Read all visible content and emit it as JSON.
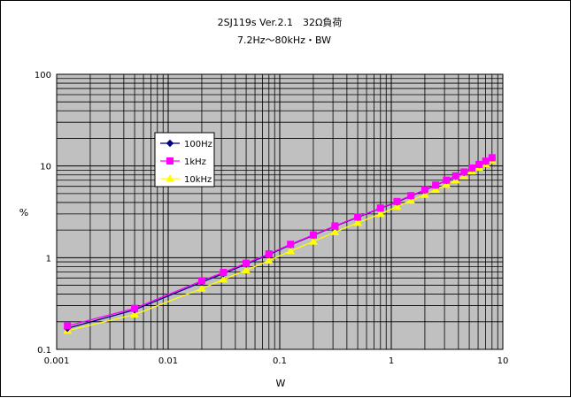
{
  "chart_data": {
    "type": "line",
    "title": "2SJ119s Ver.2.1　32Ω負荷",
    "subtitle": "7.2Hz〜80kHz・BW",
    "xlabel": "W",
    "ylabel": "%",
    "x_scale": "log",
    "y_scale": "log",
    "xlim": [
      0.001,
      10
    ],
    "ylim": [
      0.1,
      100
    ],
    "x_ticks": [
      "0.001",
      "0.01",
      "0.1",
      "1",
      "10"
    ],
    "y_ticks": [
      "0.1",
      "1",
      "10",
      "100"
    ],
    "grid": true,
    "legend_position": "upper-left",
    "series": [
      {
        "name": "100Hz",
        "color": "#000080",
        "marker": "diamond",
        "x": [
          0.00125,
          0.005,
          0.02,
          0.03125,
          0.05,
          0.08,
          0.125,
          0.2,
          0.3125,
          0.5,
          0.8,
          1.125,
          1.5,
          2.0,
          2.5,
          3.125,
          3.78,
          4.5,
          5.28,
          6.125,
          7.03,
          8.0
        ],
        "y": [
          0.17,
          0.27,
          0.54,
          0.67,
          0.85,
          1.08,
          1.38,
          1.75,
          2.2,
          2.75,
          3.45,
          4.05,
          4.7,
          5.45,
          6.15,
          6.95,
          7.7,
          8.5,
          9.4,
          10.3,
          11.2,
          12.2
        ]
      },
      {
        "name": "1kHz",
        "color": "#FF00FF",
        "marker": "square",
        "x": [
          0.00125,
          0.005,
          0.02,
          0.03125,
          0.05,
          0.08,
          0.125,
          0.2,
          0.3125,
          0.5,
          0.8,
          1.125,
          1.5,
          2.0,
          2.5,
          3.125,
          3.78,
          4.5,
          5.28,
          6.125,
          7.03,
          8.0
        ],
        "y": [
          0.18,
          0.28,
          0.56,
          0.69,
          0.87,
          1.1,
          1.4,
          1.77,
          2.22,
          2.78,
          3.48,
          4.1,
          4.75,
          5.5,
          6.2,
          7.0,
          7.8,
          8.6,
          9.5,
          10.4,
          11.3,
          12.3
        ]
      },
      {
        "name": "10kHz",
        "color": "#FFFF00",
        "marker": "triangle",
        "x": [
          0.00125,
          0.005,
          0.02,
          0.03125,
          0.05,
          0.08,
          0.125,
          0.2,
          0.3125,
          0.5,
          0.8,
          1.125,
          1.5,
          2.0,
          2.5,
          3.125,
          3.78,
          4.5,
          5.28,
          6.125,
          7.03,
          8.0
        ],
        "y": [
          0.16,
          0.24,
          0.46,
          0.58,
          0.73,
          0.93,
          1.18,
          1.5,
          1.9,
          2.4,
          3.0,
          3.6,
          4.2,
          4.85,
          5.5,
          6.25,
          7.0,
          7.8,
          8.7,
          9.6,
          10.5,
          11.5
        ]
      }
    ]
  }
}
